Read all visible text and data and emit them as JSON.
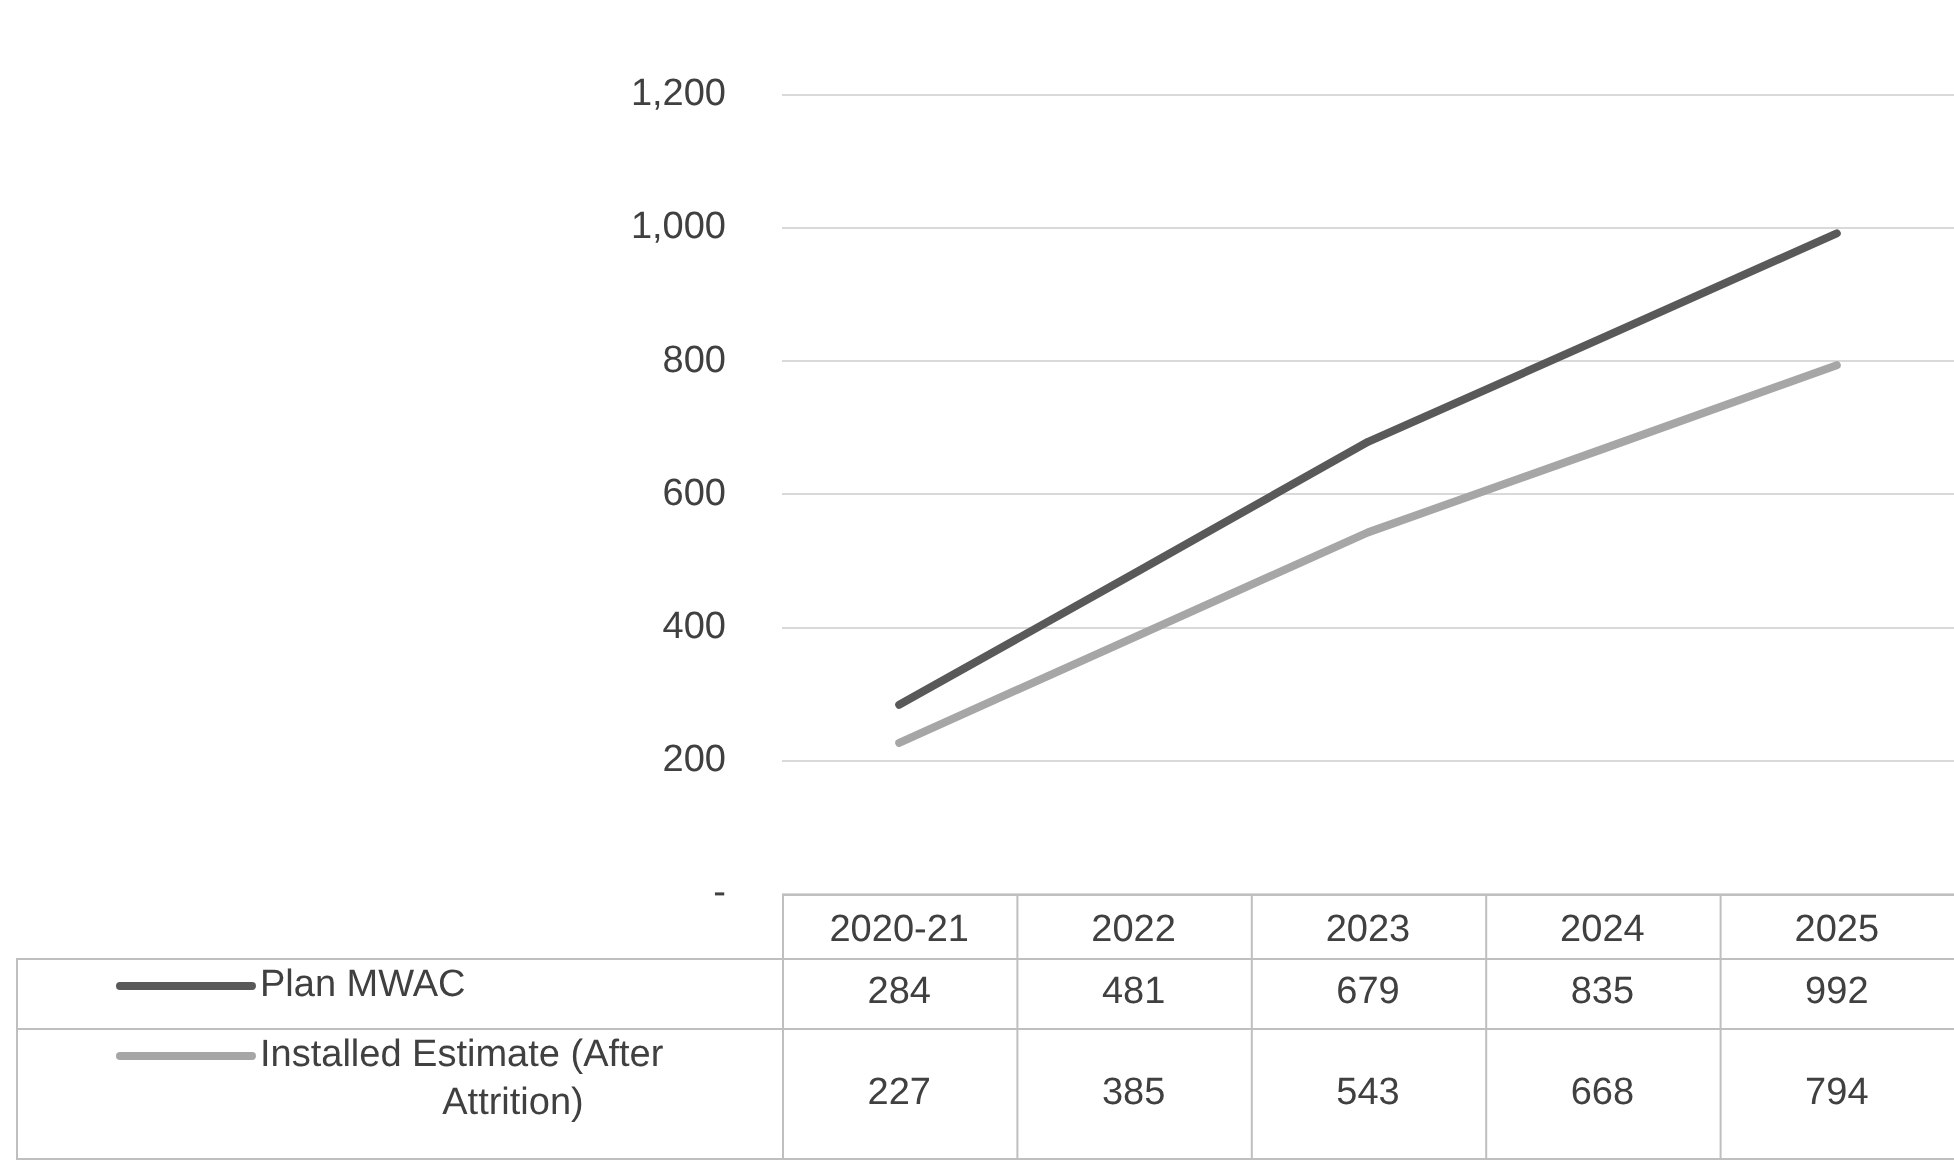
{
  "chart_data": {
    "type": "line",
    "categories": [
      "2020-21",
      "2022",
      "2023",
      "2024",
      "2025"
    ],
    "series": [
      {
        "name": "Plan MWAC",
        "color": "#595959",
        "values": [
          284,
          481,
          679,
          835,
          992
        ]
      },
      {
        "name": "Installed Estimate (After Attrition)",
        "color": "#a6a6a6",
        "values": [
          227,
          385,
          543,
          668,
          794
        ]
      }
    ],
    "ylim": [
      0,
      1200
    ],
    "yticks": [
      {
        "value": 0,
        "label": "-"
      },
      200,
      400,
      600,
      800,
      {
        "value": 1000,
        "label": "1,000"
      },
      {
        "value": 1200,
        "label": "1,200"
      }
    ],
    "grid": "y",
    "legend": "bottom",
    "data_labels": true,
    "marker": "none",
    "line_style": "solid"
  }
}
